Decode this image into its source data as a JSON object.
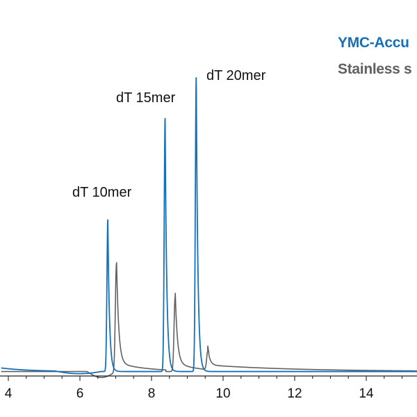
{
  "chart_data": {
    "type": "line",
    "title": "",
    "xlabel": "",
    "ylabel": "",
    "xlim": [
      3.8,
      15.6
    ],
    "ylim": [
      0,
      1.0
    ],
    "x_ticks": [
      4,
      6,
      8,
      10,
      12,
      14
    ],
    "x_tick_labels": [
      "4",
      "6",
      "8",
      "10",
      "12",
      "14"
    ],
    "grid": false,
    "legend_position": "top-right",
    "series": [
      {
        "name": "YMC-Accu",
        "color": "#1470b8",
        "baseline": 0.015,
        "peaks": [
          {
            "x": 6.78,
            "height": 0.51,
            "label": "dT 10mer"
          },
          {
            "x": 8.38,
            "height": 0.85,
            "label": "dT 15mer"
          },
          {
            "x": 9.25,
            "height": 0.99,
            "label": "dT 20mer"
          }
        ]
      },
      {
        "name": "Stainless s",
        "color": "#606060",
        "baseline": 0.015,
        "peaks": [
          {
            "x": 7.02,
            "height": 0.36
          },
          {
            "x": 8.66,
            "height": 0.25
          },
          {
            "x": 9.57,
            "height": 0.06
          }
        ]
      }
    ]
  },
  "peak_labels": {
    "p10": "dT 10mer",
    "p15": "dT 15mer",
    "p20": "dT 20mer"
  },
  "legend": {
    "blue": "YMC-Accu",
    "gray": "Stainless s"
  },
  "colors": {
    "blue": "#1470b8",
    "gray": "#606060",
    "axis": "#222222"
  }
}
